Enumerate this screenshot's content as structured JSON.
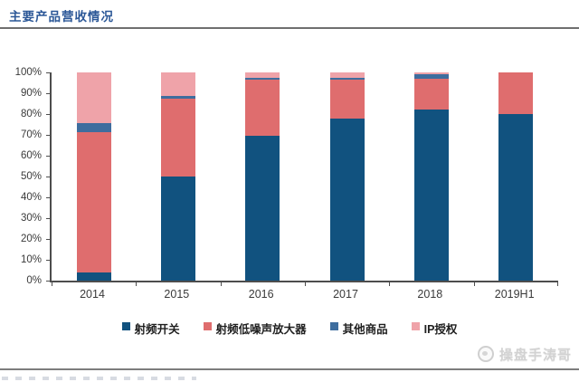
{
  "page": {
    "title": "主要产品营收情况",
    "title_color": "#2B5797",
    "watermark": {
      "text": "操盘手涛哥",
      "logo": "panda-face-logo-icon"
    }
  },
  "chart_data": {
    "type": "bar",
    "stacked": true,
    "title": "主要产品营收情况",
    "xlabel": "",
    "ylabel": "",
    "ylim": [
      0,
      100
    ],
    "grid": false,
    "legend_position": "bottom",
    "categories": [
      "2014",
      "2015",
      "2016",
      "2017",
      "2018",
      "2019H1"
    ],
    "y_ticks": [
      "0%",
      "10%",
      "20%",
      "30%",
      "40%",
      "50%",
      "60%",
      "70%",
      "80%",
      "90%",
      "100%"
    ],
    "series": [
      {
        "name": "射频开关",
        "color": "#11527F",
        "values": [
          4,
          50,
          69.5,
          78,
          82,
          80
        ]
      },
      {
        "name": "射频低噪声放大器",
        "color": "#DF6D6E",
        "values": [
          67.5,
          37.5,
          27,
          18.5,
          15,
          20
        ]
      },
      {
        "name": "其他商品",
        "color": "#3E6D9E",
        "values": [
          4,
          1,
          1,
          1,
          2,
          0
        ]
      },
      {
        "name": "IP授权",
        "color": "#EFA3A9",
        "values": [
          24.5,
          11.5,
          2.5,
          2.5,
          1,
          0
        ]
      }
    ]
  }
}
